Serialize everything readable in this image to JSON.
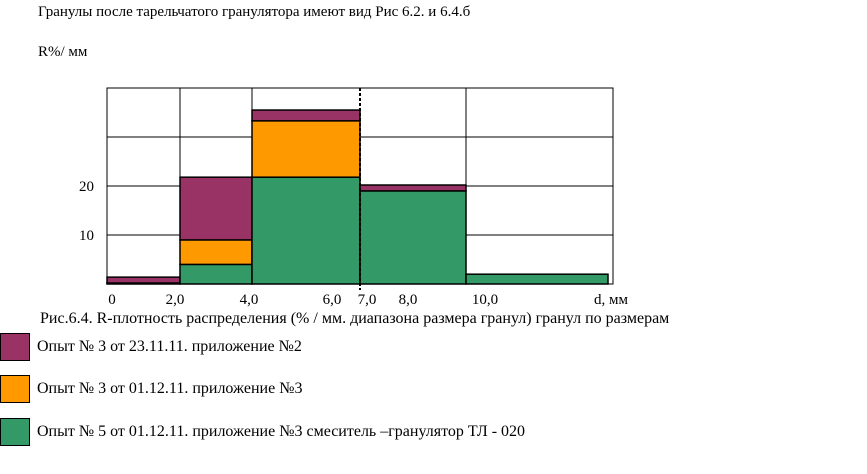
{
  "header": "Гранулы после тарельчатого гранулятора имеют вид  Рис 6.2. и 6.4.б",
  "chart_data": {
    "type": "bar",
    "title": "",
    "ylabel": "R%/ мм",
    "xlabel": "d, мм",
    "ylim": [
      0,
      40
    ],
    "xlim": [
      0,
      14
    ],
    "y_ticks": [
      10,
      20
    ],
    "x_ticks": [
      "0",
      "2,0",
      "4,0",
      "6,0",
      "7,0",
      "8,0",
      "10,0"
    ],
    "grid": true,
    "dashed_line_x": 7.0,
    "bins": [
      {
        "from": 0,
        "to": 2,
        "values": [
          1.2,
          0,
          0.2
        ]
      },
      {
        "from": 2,
        "to": 4,
        "values": [
          12.8,
          5.0,
          4.0
        ]
      },
      {
        "from": 4,
        "to": 7,
        "values": [
          2.2,
          11.5,
          21.8
        ]
      },
      {
        "from": 7,
        "to": 10,
        "values": [
          1.2,
          0,
          19.0
        ]
      },
      {
        "from": 10,
        "to": 14,
        "values": [
          0,
          0,
          2.0
        ]
      }
    ],
    "series": [
      {
        "name": "Опыт № 3  от 23.11.11. приложение №2",
        "color": "#993366"
      },
      {
        "name": "Опыт № 3 от 01.12.11. приложение №3",
        "color": "#ff9900"
      },
      {
        "name": "Опыт № 5  от 01.12.11. приложение №3  смеситель –гранулятор ТЛ - 020",
        "color": "#339966"
      }
    ]
  },
  "caption": "Рис.6.4. R-плотность распределения (% / мм. диапазона размера гранул) гранул по размерам"
}
